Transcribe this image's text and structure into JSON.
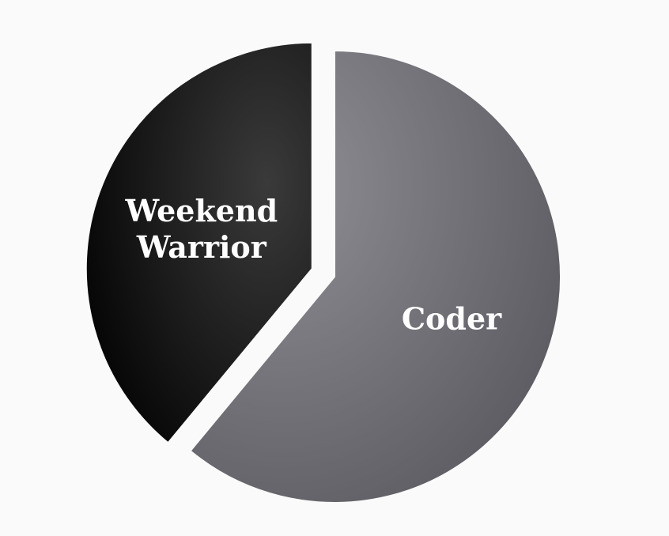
{
  "chart_data": {
    "type": "pie",
    "title": "",
    "slices": [
      {
        "label": "Coder",
        "value": 61,
        "color": "#6e6e73",
        "exploded": false
      },
      {
        "label": "Weekend Warrior",
        "value": 39,
        "color": "#1a1a1a",
        "exploded": true
      }
    ],
    "legend": "none"
  }
}
